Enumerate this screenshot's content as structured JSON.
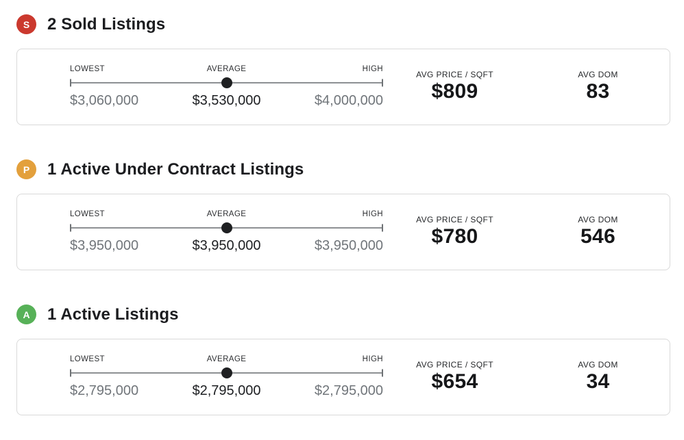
{
  "labels": {
    "lowest": "LOWEST",
    "average": "AVERAGE",
    "high": "HIGH",
    "avg_price_sqft": "AVG PRICE / SQFT",
    "avg_dom": "AVG DOM"
  },
  "sections": [
    {
      "title": "2 Sold Listings",
      "badge": {
        "letter": "S",
        "color": "#CB392E"
      },
      "range": {
        "lowest": "$3,060,000",
        "average": "$3,530,000",
        "high": "$4,000,000",
        "average_position": "50%"
      },
      "stats": {
        "avg_price_sqft": "$809",
        "avg_dom": "83"
      }
    },
    {
      "title": "1 Active Under Contract Listings",
      "badge": {
        "letter": "P",
        "color": "#E3A03C"
      },
      "range": {
        "lowest": "$3,950,000",
        "average": "$3,950,000",
        "high": "$3,950,000",
        "average_position": "50%"
      },
      "stats": {
        "avg_price_sqft": "$780",
        "avg_dom": "546"
      }
    },
    {
      "title": "1 Active Listings",
      "badge": {
        "letter": "A",
        "color": "#57B158"
      },
      "range": {
        "lowest": "$2,795,000",
        "average": "$2,795,000",
        "high": "$2,795,000",
        "average_position": "50%"
      },
      "stats": {
        "avg_price_sqft": "$654",
        "avg_dom": "34"
      }
    }
  ]
}
